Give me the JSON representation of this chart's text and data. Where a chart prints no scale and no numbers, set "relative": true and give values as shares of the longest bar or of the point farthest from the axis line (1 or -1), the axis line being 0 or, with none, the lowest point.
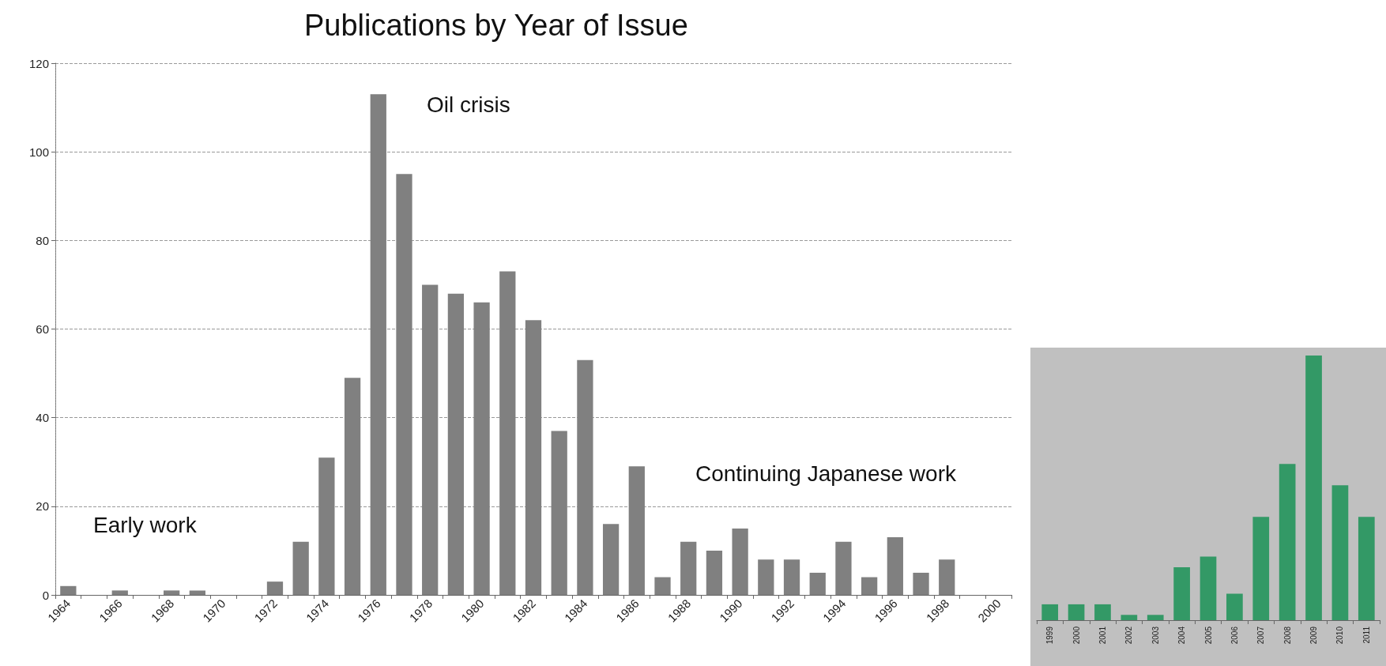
{
  "chart_data": [
    {
      "type": "bar",
      "title": "Publications by Year of Issue",
      "categories": [
        "1964",
        null,
        "1966",
        null,
        "1968",
        null,
        "1970",
        null,
        "1972",
        null,
        "1974",
        null,
        "1976",
        null,
        "1978",
        null,
        "1980",
        null,
        "1982",
        null,
        "1984",
        null,
        "1986",
        null,
        "1988",
        null,
        "1990",
        null,
        "1992",
        null,
        "1994",
        null,
        "1996",
        null,
        "1998",
        null,
        "2000"
      ],
      "values": [
        2,
        0,
        1,
        0,
        1,
        1,
        0,
        0,
        3,
        12,
        31,
        49,
        113,
        95,
        70,
        68,
        66,
        73,
        62,
        37,
        53,
        16,
        29,
        4,
        12,
        10,
        15,
        8,
        8,
        5,
        12,
        4,
        13,
        5,
        8,
        null,
        null
      ],
      "color": "#808080",
      "ylim": [
        0,
        120
      ],
      "yticks": [
        0,
        20,
        40,
        60,
        80,
        100,
        120
      ],
      "grid": "y",
      "annotations": [
        "Early work",
        "Oil crisis",
        "Continuing Japanese work"
      ]
    },
    {
      "type": "bar",
      "relative": true,
      "categories": [
        "1999",
        "2000",
        "2001",
        "2002",
        "2003",
        "2004",
        "2005",
        "2006",
        "2007",
        "2008",
        "2009",
        "2010",
        "2011"
      ],
      "values": [
        0.06,
        0.06,
        0.06,
        0.02,
        0.02,
        0.2,
        0.24,
        0.1,
        0.39,
        0.59,
        1,
        0.51,
        0.39
      ],
      "color": "#339966"
    }
  ]
}
